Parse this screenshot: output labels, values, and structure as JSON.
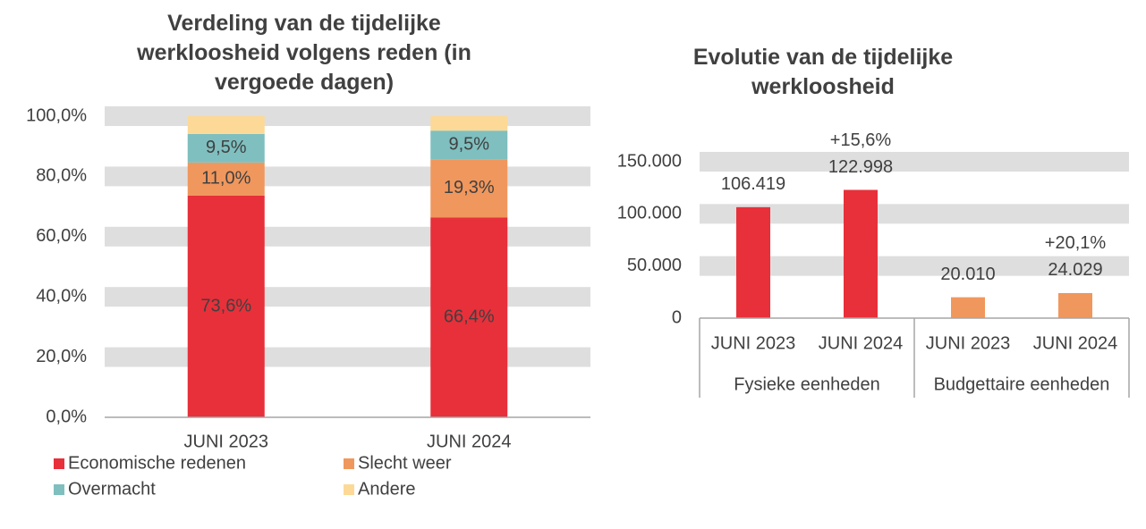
{
  "chart_data": [
    {
      "type": "stacked-bar",
      "title": "Verdeling van de tijdelijke werkloosheid volgens reden (in vergoede dagen)",
      "categories": [
        "JUNI 2023",
        "JUNI 2024"
      ],
      "series": [
        {
          "name": "Economische redenen",
          "color": "#e8303a",
          "values": [
            73.6,
            66.4
          ],
          "value_labels": [
            "73,6%",
            "66,4%"
          ]
        },
        {
          "name": "Slecht weer",
          "color": "#f0975d",
          "values": [
            11.0,
            19.3
          ],
          "value_labels": [
            "11,0%",
            "19,3%"
          ]
        },
        {
          "name": "Overmacht",
          "color": "#7fbfbf",
          "values": [
            9.5,
            9.5
          ],
          "value_labels": [
            "9,5%",
            "9,5%"
          ]
        },
        {
          "name": "Andere",
          "color": "#fcd997",
          "values": [
            5.9,
            4.8
          ]
        }
      ],
      "ylim": [
        0,
        100
      ],
      "yticks": [
        {
          "value": 0,
          "label": "0,0%"
        },
        {
          "value": 20,
          "label": "20,0%"
        },
        {
          "value": 40,
          "label": "40,0%"
        },
        {
          "value": 60,
          "label": "60,0%"
        },
        {
          "value": 80,
          "label": "80,0%"
        },
        {
          "value": 100,
          "label": "100,0%"
        }
      ],
      "grid": true,
      "legend": "bottom"
    },
    {
      "type": "bar",
      "title": "Evolutie van de tijdelijke werkloosheid",
      "categories": [
        "JUNI 2023",
        "JUNI 2024",
        "JUNI 2023",
        "JUNI 2024"
      ],
      "groups": [
        "Fysieke eenheden",
        "Budgettaire eenheden"
      ],
      "values": [
        106419,
        122998,
        20010,
        24029
      ],
      "value_labels": [
        "106.419",
        "122.998",
        "20.010",
        "24.029"
      ],
      "change_labels": [
        null,
        "+15,6%",
        null,
        "+20,1%"
      ],
      "colors": [
        "#e8303a",
        "#e8303a",
        "#f0975d",
        "#f0975d"
      ],
      "ylim": [
        0,
        150000
      ],
      "yticks": [
        0,
        {
          "value": 50000,
          "label": "50.000"
        },
        {
          "value": 100000,
          "label": "100.000"
        },
        {
          "value": 150000,
          "label": "150.000"
        }
      ],
      "grid": true
    }
  ]
}
